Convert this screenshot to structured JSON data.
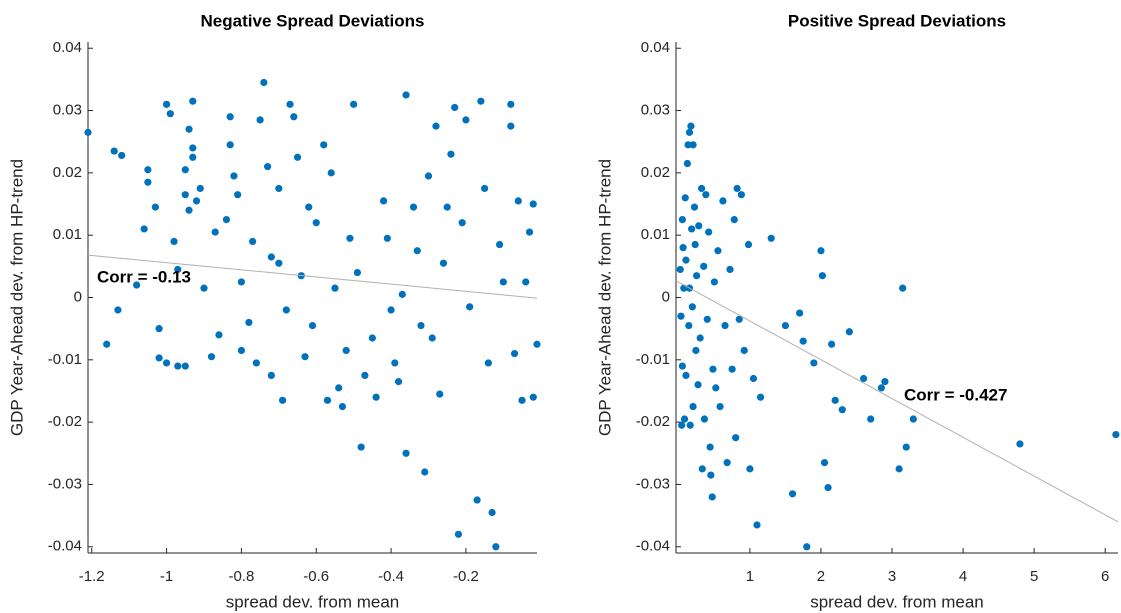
{
  "chart_data": [
    {
      "type": "scatter",
      "title": "Negative Spread Deviations",
      "x_label": "spread dev. from mean",
      "y_label": "GDP Year-Ahead dev. from HP-trend",
      "annotation": "Corr = -0.13",
      "color": "#0072bd",
      "fit_color": "#b0b0b0",
      "xlim": [
        -1.21,
        -0.01
      ],
      "ylim": [
        -0.041,
        0.041
      ],
      "xticks": [
        -1.2,
        -1,
        -0.8,
        -0.6,
        -0.4,
        -0.2
      ],
      "yticks": [
        -0.04,
        -0.03,
        -0.02,
        -0.01,
        0,
        0.01,
        0.02,
        0.03,
        0.04
      ],
      "x": [
        -1.21,
        -1.14,
        -1.12,
        -1.16,
        -1.13,
        -1.08,
        -1.06,
        -1.05,
        -1.05,
        -1.03,
        -1.02,
        -1.02,
        -1.0,
        -1.0,
        -0.99,
        -0.98,
        -0.97,
        -0.97,
        -0.95,
        -0.94,
        -0.93,
        -0.93,
        -0.93,
        -0.95,
        -0.94,
        -0.92,
        -0.91,
        -0.95,
        -0.9,
        -0.88,
        -0.87,
        -0.86,
        -0.84,
        -0.83,
        -0.83,
        -0.82,
        -0.81,
        -0.8,
        -0.8,
        -0.78,
        -0.77,
        -0.76,
        -0.75,
        -0.74,
        -0.73,
        -0.72,
        -0.72,
        -0.7,
        -0.7,
        -0.69,
        -0.68,
        -0.67,
        -0.66,
        -0.65,
        -0.64,
        -0.63,
        -0.62,
        -0.61,
        -0.6,
        -0.58,
        -0.57,
        -0.56,
        -0.55,
        -0.54,
        -0.53,
        -0.52,
        -0.51,
        -0.5,
        -0.49,
        -0.48,
        -0.47,
        -0.45,
        -0.44,
        -0.42,
        -0.41,
        -0.4,
        -0.39,
        -0.38,
        -0.37,
        -0.36,
        -0.36,
        -0.34,
        -0.33,
        -0.32,
        -0.31,
        -0.3,
        -0.29,
        -0.28,
        -0.27,
        -0.26,
        -0.25,
        -0.24,
        -0.23,
        -0.22,
        -0.21,
        -0.2,
        -0.19,
        -0.17,
        -0.16,
        -0.15,
        -0.14,
        -0.13,
        -0.12,
        -0.11,
        -0.1,
        -0.08,
        -0.08,
        -0.07,
        -0.06,
        -0.05,
        -0.04,
        -0.03,
        -0.02,
        -0.02,
        -0.01
      ],
      "y": [
        0.0265,
        0.0235,
        0.0228,
        -0.0075,
        -0.002,
        0.002,
        0.011,
        0.0205,
        0.0185,
        0.0145,
        -0.005,
        -0.0097,
        0.031,
        -0.0105,
        0.0295,
        0.009,
        0.0045,
        -0.011,
        0.0205,
        0.027,
        0.024,
        0.0315,
        0.0225,
        0.0165,
        0.014,
        0.0155,
        0.0175,
        -0.011,
        0.0015,
        -0.0095,
        0.0105,
        -0.006,
        0.0125,
        0.0245,
        0.029,
        0.0195,
        0.0165,
        0.0025,
        -0.0085,
        -0.004,
        0.009,
        -0.0105,
        0.0285,
        0.0345,
        0.021,
        0.0065,
        -0.0125,
        0.0175,
        0.0055,
        -0.0165,
        -0.002,
        0.031,
        0.029,
        0.0225,
        0.0035,
        -0.0095,
        0.0145,
        -0.0045,
        0.012,
        0.0245,
        -0.0165,
        0.02,
        0.0015,
        -0.0145,
        -0.0175,
        -0.0085,
        0.0095,
        0.031,
        0.004,
        -0.024,
        -0.0125,
        -0.0065,
        -0.016,
        0.0155,
        0.0095,
        -0.002,
        -0.0105,
        -0.0135,
        0.0005,
        0.0325,
        -0.025,
        0.0145,
        0.0075,
        -0.0045,
        -0.028,
        0.0195,
        -0.0065,
        0.0275,
        -0.0155,
        0.0055,
        0.0145,
        0.023,
        0.0305,
        -0.038,
        0.012,
        0.0285,
        -0.0015,
        -0.0325,
        0.0315,
        0.0175,
        -0.0105,
        -0.0345,
        -0.04,
        0.0085,
        0.0025,
        0.031,
        0.0275,
        -0.009,
        0.0155,
        -0.0165,
        0.0025,
        0.0105,
        -0.016,
        0.015,
        -0.0075
      ],
      "fit": {
        "x": [
          -1.21,
          -0.01
        ],
        "y": [
          0.0068,
          -0.0001
        ]
      }
    },
    {
      "type": "scatter",
      "title": "Positive Spread Deviations",
      "x_label": "spread dev. from mean",
      "y_label": "GDP Year-Ahead dev. from HP-trend",
      "annotation": "Corr = -0.427",
      "color": "#0072bd",
      "fit_color": "#b0b0b0",
      "xlim": [
        -0.04,
        6.18
      ],
      "ylim": [
        -0.041,
        0.041
      ],
      "xticks": [
        1,
        2,
        3,
        4,
        5,
        6
      ],
      "yticks": [
        -0.04,
        -0.03,
        -0.02,
        -0.01,
        0,
        0.01,
        0.02,
        0.03,
        0.04
      ],
      "x": [
        0.02,
        0.03,
        0.04,
        0.05,
        0.05,
        0.06,
        0.07,
        0.08,
        0.09,
        0.1,
        0.1,
        0.12,
        0.13,
        0.14,
        0.15,
        0.15,
        0.16,
        0.17,
        0.18,
        0.19,
        0.2,
        0.2,
        0.22,
        0.23,
        0.24,
        0.25,
        0.27,
        0.28,
        0.3,
        0.32,
        0.33,
        0.35,
        0.36,
        0.38,
        0.4,
        0.42,
        0.44,
        0.45,
        0.47,
        0.48,
        0.5,
        0.52,
        0.55,
        0.58,
        0.62,
        0.65,
        0.68,
        0.72,
        0.75,
        0.78,
        0.8,
        0.82,
        0.85,
        0.88,
        0.92,
        0.98,
        1.0,
        1.05,
        1.1,
        1.15,
        1.3,
        1.5,
        1.6,
        1.7,
        1.75,
        1.8,
        1.9,
        2.0,
        2.02,
        2.05,
        2.1,
        2.15,
        2.2,
        2.3,
        2.4,
        2.6,
        2.7,
        2.85,
        2.9,
        3.1,
        3.15,
        3.2,
        3.3,
        4.8,
        6.15
      ],
      "y": [
        0.0045,
        -0.003,
        -0.0205,
        0.0125,
        -0.011,
        0.008,
        0.0015,
        -0.0195,
        0.016,
        0.006,
        -0.0125,
        0.0215,
        0.0245,
        -0.0045,
        0.0265,
        0.0015,
        -0.0205,
        0.0275,
        0.011,
        -0.0015,
        0.0245,
        -0.0175,
        0.0145,
        0.0085,
        -0.0085,
        0.0035,
        -0.014,
        0.0115,
        -0.0065,
        0.0175,
        -0.0275,
        0.005,
        -0.0195,
        0.0165,
        -0.0035,
        0.0105,
        -0.024,
        -0.0285,
        -0.032,
        -0.0115,
        0.0025,
        -0.0145,
        0.0075,
        -0.0175,
        0.0155,
        -0.0045,
        -0.0265,
        0.0045,
        -0.0115,
        0.0125,
        -0.0225,
        0.0175,
        -0.0035,
        0.0165,
        -0.0085,
        0.0085,
        -0.0275,
        -0.013,
        -0.0365,
        -0.016,
        0.0095,
        -0.0045,
        -0.0315,
        -0.0025,
        -0.007,
        -0.04,
        -0.0105,
        0.0075,
        0.0035,
        -0.0265,
        -0.0305,
        -0.0075,
        -0.0165,
        -0.018,
        -0.0055,
        -0.013,
        -0.0195,
        -0.0145,
        -0.0135,
        -0.0275,
        0.0015,
        -0.024,
        -0.0195,
        -0.0235,
        -0.022
      ],
      "fit": {
        "x": [
          -0.04,
          6.18
        ],
        "y": [
          0.0027,
          -0.036
        ]
      }
    }
  ]
}
